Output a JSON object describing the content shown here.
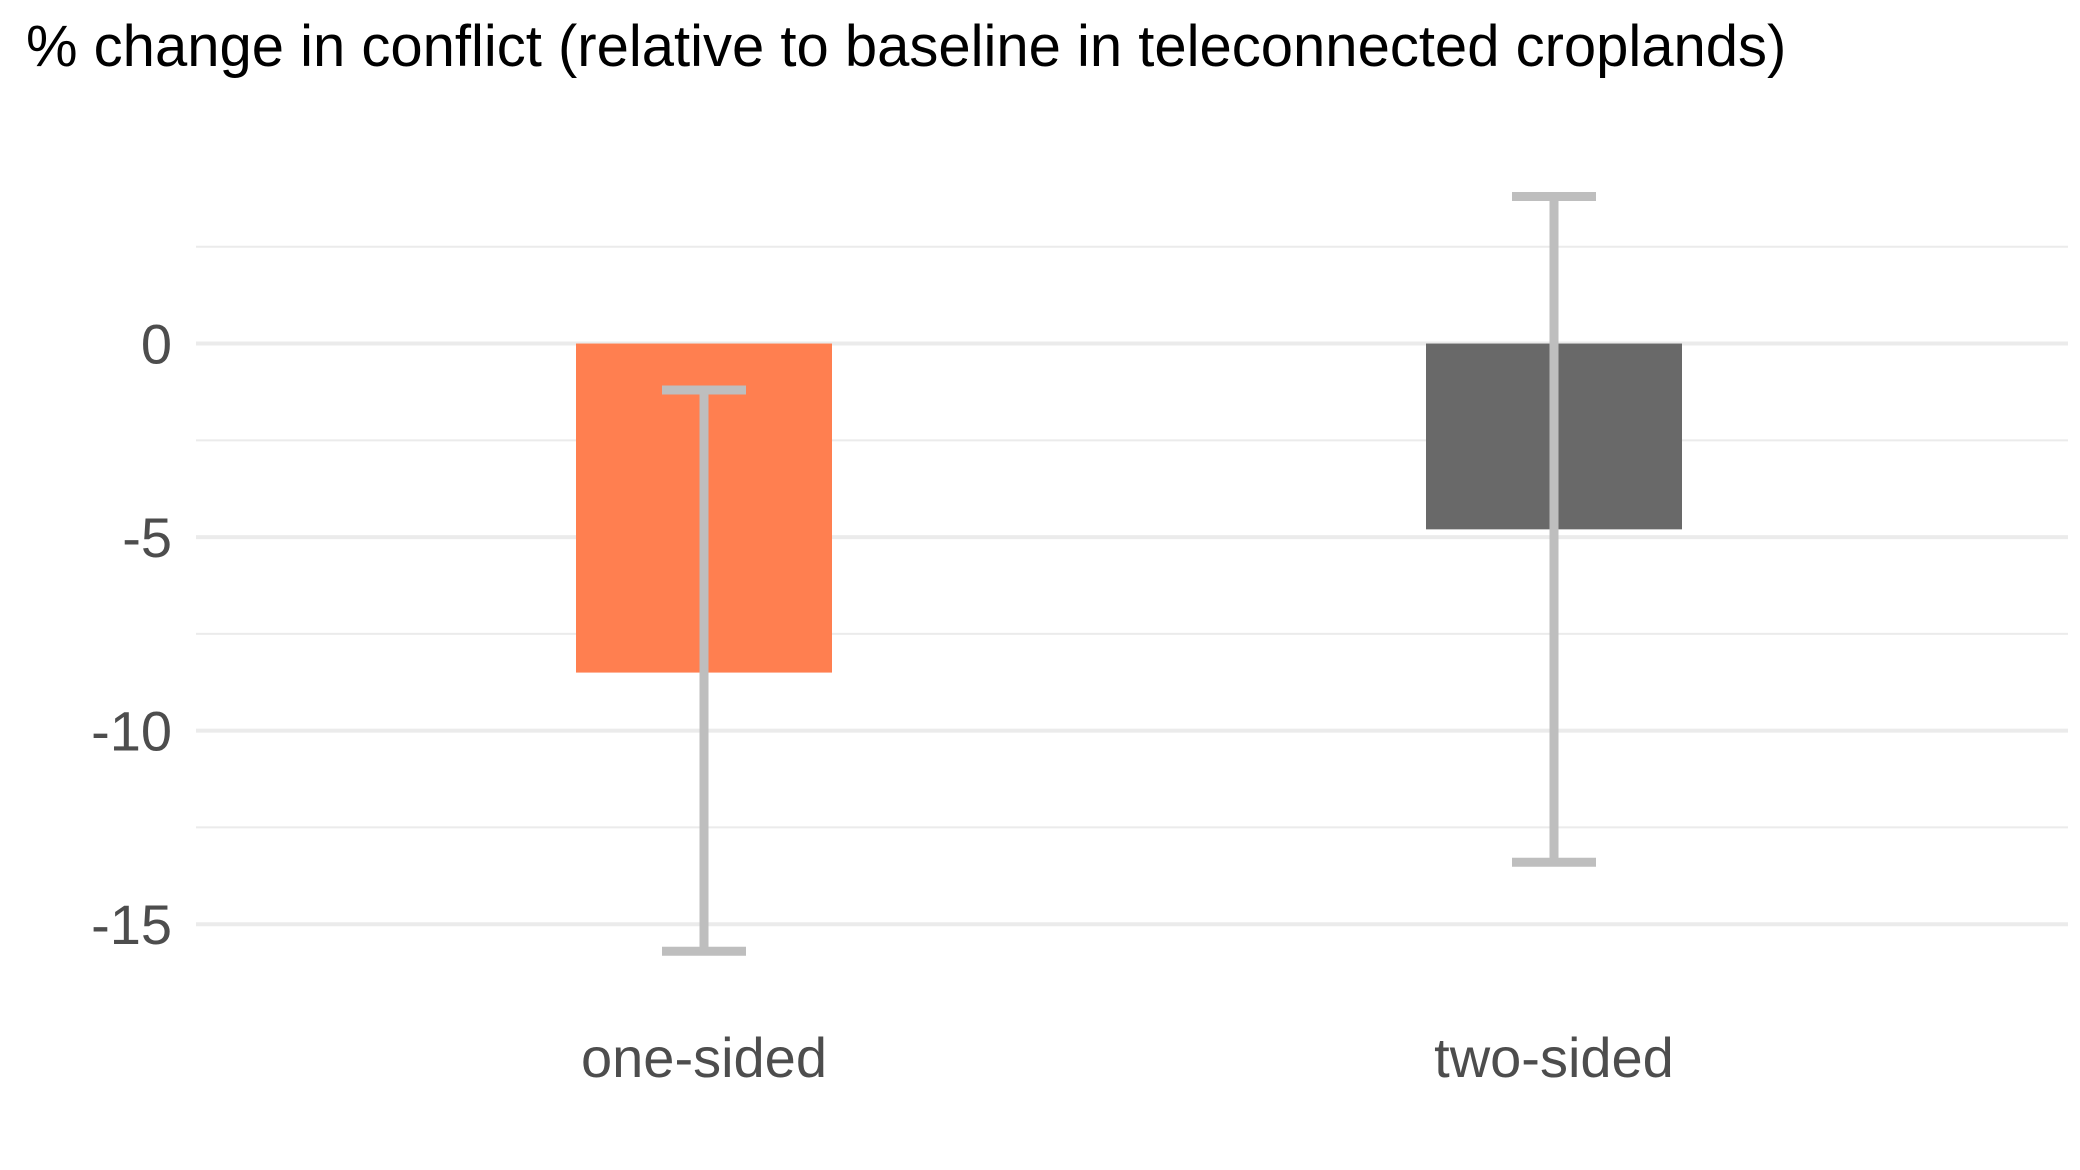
{
  "chart_data": {
    "type": "bar",
    "title": "% change in conflict (relative to baseline in teleconnected croplands)",
    "xlabel": "",
    "ylabel": "",
    "categories": [
      "one-sided",
      "two-sided"
    ],
    "series": [
      {
        "values": [
          -8.5,
          -4.8
        ],
        "error_low": [
          -15.7,
          -13.4
        ],
        "error_high": [
          -1.2,
          3.8
        ],
        "colors": [
          "#ff7f50",
          "#696969"
        ]
      }
    ],
    "ylim": [
      -16.7,
      5
    ],
    "yticks": [
      0,
      -5,
      -10,
      -15
    ],
    "ytick_labels": [
      "0",
      "-5",
      "-10",
      "-15"
    ],
    "minor_yticks": [
      2.5,
      -2.5,
      -7.5,
      -12.5
    ],
    "grid": true,
    "legend": "none",
    "error_bar_color": "#bebebe",
    "grid_color": "#ebebeb"
  }
}
